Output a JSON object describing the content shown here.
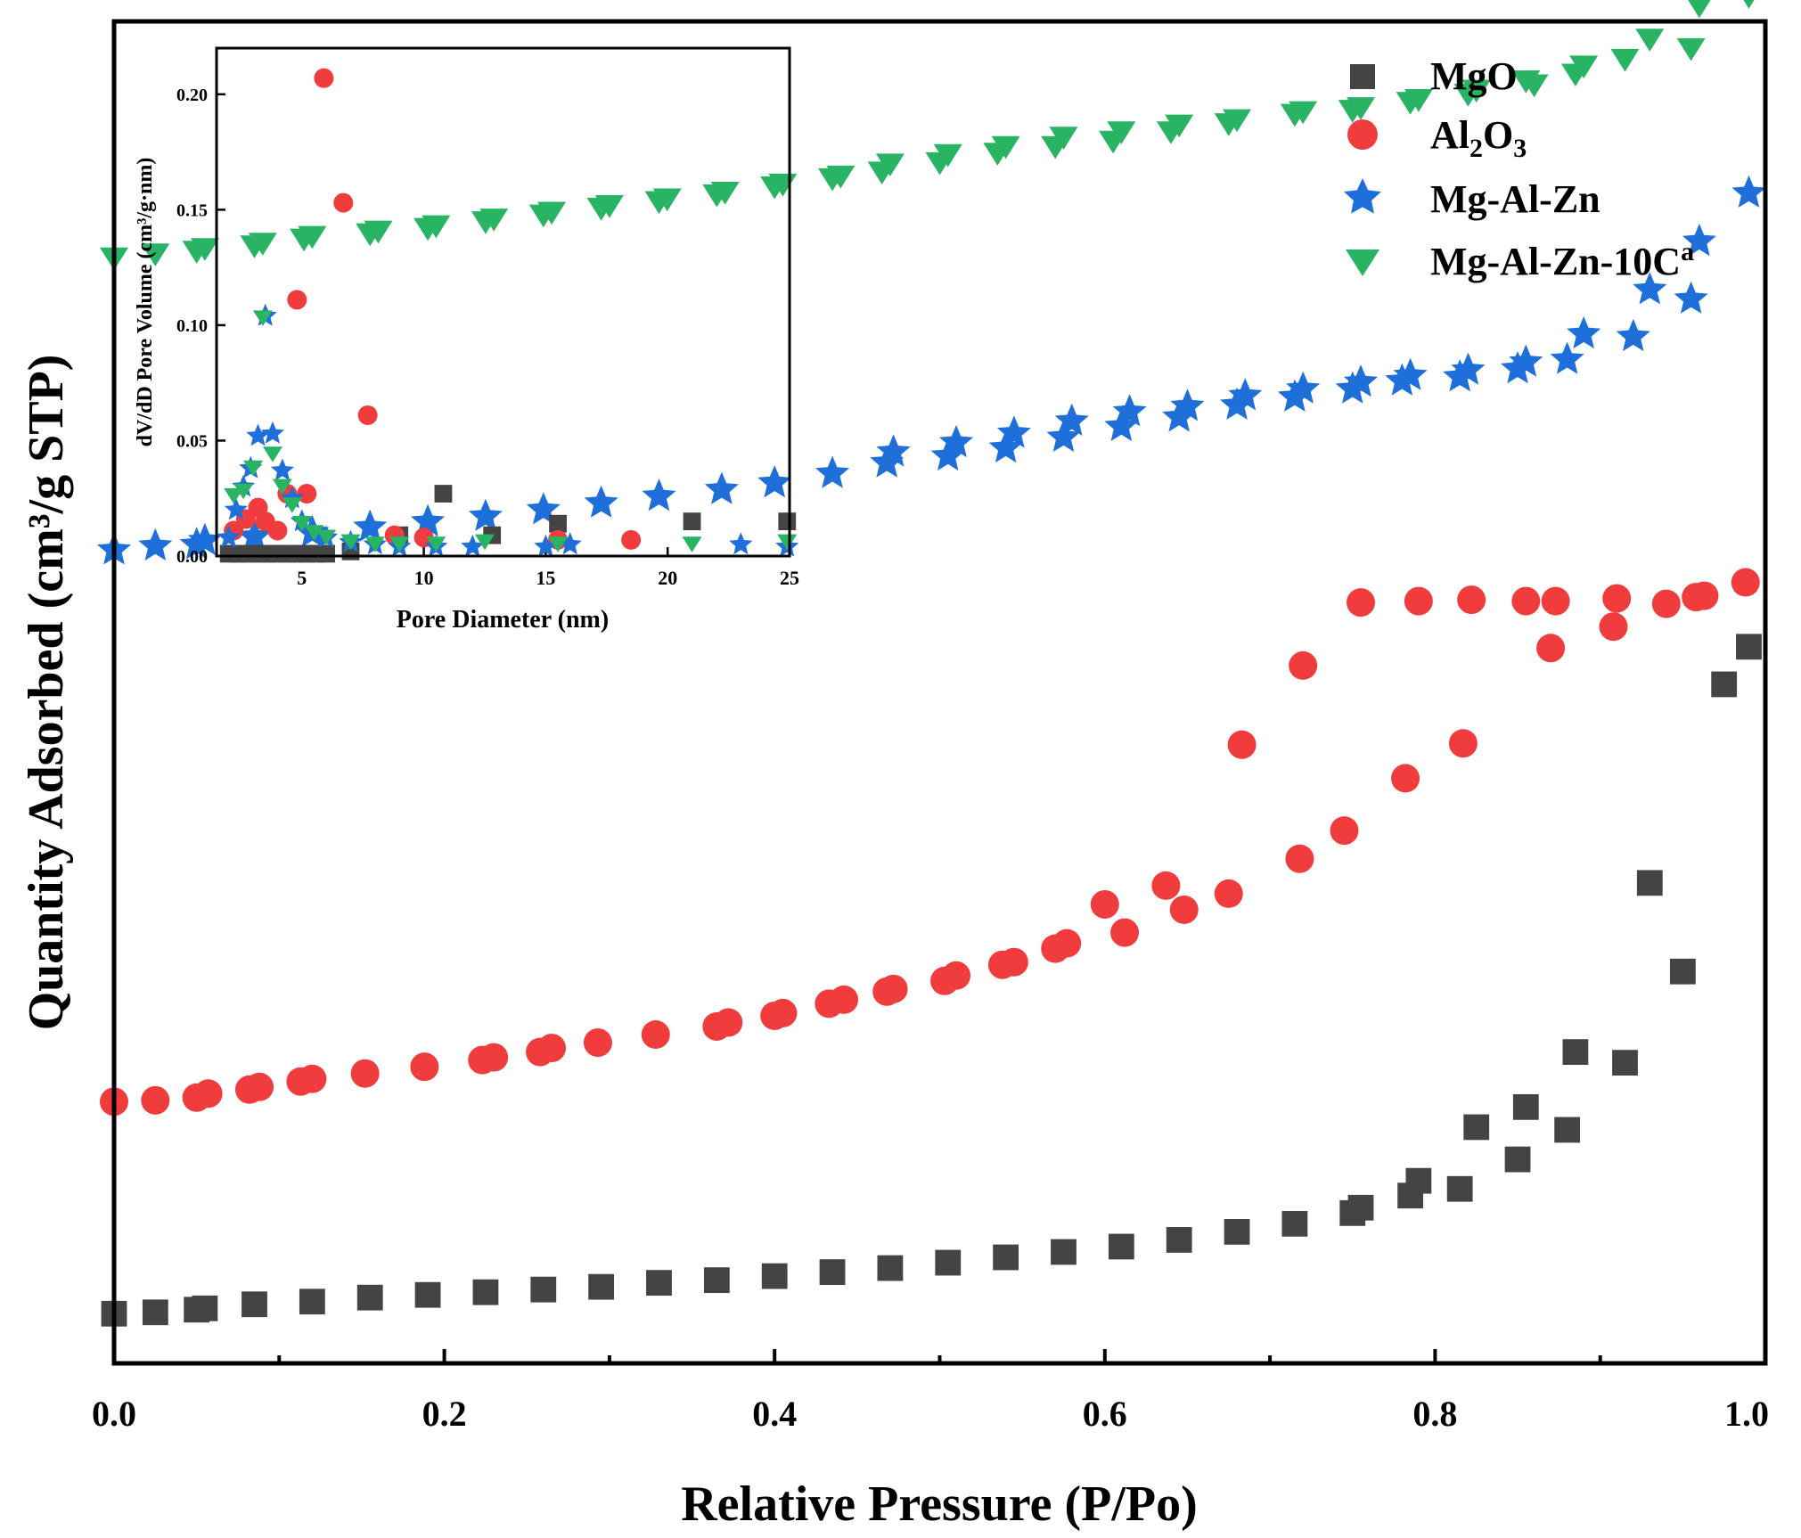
{
  "chart_data": [
    {
      "type": "scatter",
      "xlabel": "Relative Pressure (P/Po)",
      "ylabel": "Quantity Adsorbed (cm³/g STP)",
      "xlim": [
        0,
        1.0
      ],
      "ylim": [
        0,
        100
      ],
      "x_ticks": [
        "0.0",
        "0.2",
        "0.4",
        "0.6",
        "0.8",
        "1.0"
      ],
      "y_ticks_labeled": false,
      "legend": {
        "placement": "top-right",
        "entries": [
          {
            "label": "MgO",
            "marker": "square",
            "color": "#444444"
          },
          {
            "label": "Al",
            "sub": "2",
            "label2": "O",
            "sub2": "3",
            "marker": "circle",
            "color": "#f03c3c"
          },
          {
            "label": "Mg-Al-Zn",
            "marker": "star",
            "color": "#1e6fd9"
          },
          {
            "label": "Mg-Al-Zn-10C",
            "sup": "a",
            "marker": "triangle-down",
            "color": "#28b463"
          }
        ]
      },
      "series": [
        {
          "name": "MgO",
          "marker": "square",
          "color": "#444444",
          "x": [
            0.0,
            0.025,
            0.05,
            0.055,
            0.085,
            0.12,
            0.155,
            0.19,
            0.225,
            0.26,
            0.295,
            0.33,
            0.365,
            0.4,
            0.435,
            0.47,
            0.505,
            0.54,
            0.575,
            0.61,
            0.645,
            0.68,
            0.715,
            0.75,
            0.755,
            0.785,
            0.79,
            0.815,
            0.825,
            0.85,
            0.855,
            0.88,
            0.885,
            0.915,
            0.93,
            0.95,
            0.975,
            0.99
          ],
          "y": [
            3.7,
            3.8,
            4.0,
            4.1,
            4.4,
            4.6,
            4.9,
            5.1,
            5.3,
            5.5,
            5.7,
            6.0,
            6.2,
            6.5,
            6.8,
            7.1,
            7.5,
            7.9,
            8.3,
            8.7,
            9.2,
            9.8,
            10.4,
            11.2,
            11.6,
            12.5,
            13.6,
            13.0,
            17.6,
            15.2,
            19.1,
            17.4,
            23.2,
            22.4,
            35.8,
            29.2,
            50.6,
            53.4
          ]
        },
        {
          "name": "Al2O3",
          "marker": "circle",
          "color": "#f03c3c",
          "x": [
            0.0,
            0.025,
            0.05,
            0.057,
            0.082,
            0.088,
            0.113,
            0.12,
            0.152,
            0.188,
            0.223,
            0.23,
            0.258,
            0.265,
            0.293,
            0.328,
            0.365,
            0.372,
            0.4,
            0.405,
            0.433,
            0.442,
            0.468,
            0.472,
            0.503,
            0.51,
            0.538,
            0.545,
            0.57,
            0.577,
            0.6,
            0.612,
            0.637,
            0.648,
            0.675,
            0.683,
            0.718,
            0.72,
            0.745,
            0.755,
            0.782,
            0.79,
            0.817,
            0.822,
            0.855,
            0.87,
            0.873,
            0.908,
            0.91,
            0.94,
            0.958,
            0.963,
            0.988
          ],
          "y": [
            19.5,
            19.6,
            19.8,
            20.1,
            20.4,
            20.6,
            21.0,
            21.2,
            21.6,
            22.1,
            22.6,
            22.8,
            23.2,
            23.5,
            23.9,
            24.5,
            25.1,
            25.4,
            25.9,
            26.1,
            26.8,
            27.1,
            27.7,
            27.9,
            28.5,
            28.9,
            29.7,
            29.9,
            30.9,
            31.3,
            34.2,
            32.1,
            35.6,
            33.8,
            35.0,
            46.1,
            37.6,
            52.0,
            39.7,
            56.7,
            43.6,
            56.8,
            46.2,
            56.9,
            56.8,
            53.3,
            56.8,
            54.9,
            57.0,
            56.6,
            57.1,
            57.2,
            58.2
          ]
        },
        {
          "name": "Mg-Al-Zn",
          "marker": "star",
          "color": "#1e6fd9",
          "x": [
            0.0,
            0.025,
            0.05,
            0.055,
            0.085,
            0.12,
            0.155,
            0.19,
            0.225,
            0.26,
            0.295,
            0.33,
            0.368,
            0.4,
            0.435,
            0.468,
            0.472,
            0.505,
            0.51,
            0.54,
            0.545,
            0.575,
            0.58,
            0.61,
            0.615,
            0.645,
            0.65,
            0.68,
            0.685,
            0.715,
            0.72,
            0.75,
            0.755,
            0.78,
            0.785,
            0.815,
            0.82,
            0.85,
            0.855,
            0.88,
            0.89,
            0.92,
            0.93,
            0.955,
            0.96,
            0.99
          ],
          "y": [
            60.6,
            60.9,
            61.0,
            61.3,
            61.6,
            61.9,
            62.3,
            62.7,
            63.1,
            63.6,
            64.1,
            64.6,
            65.1,
            65.6,
            66.3,
            67.1,
            67.9,
            67.6,
            68.6,
            68.2,
            69.3,
            69.0,
            70.2,
            69.8,
            70.9,
            70.5,
            71.3,
            71.4,
            72.1,
            72.0,
            72.6,
            72.6,
            73.1,
            73.2,
            73.6,
            73.5,
            74.0,
            74.1,
            74.6,
            74.8,
            76.7,
            76.5,
            80.0,
            79.3,
            83.6,
            87.2
          ]
        },
        {
          "name": "Mg-Al-Zn-10C",
          "marker": "triangle-down",
          "color": "#28b463",
          "x": [
            0.0,
            0.025,
            0.05,
            0.055,
            0.085,
            0.09,
            0.115,
            0.12,
            0.155,
            0.16,
            0.19,
            0.195,
            0.225,
            0.23,
            0.26,
            0.265,
            0.295,
            0.3,
            0.33,
            0.335,
            0.365,
            0.37,
            0.4,
            0.405,
            0.435,
            0.44,
            0.465,
            0.47,
            0.5,
            0.505,
            0.535,
            0.54,
            0.57,
            0.575,
            0.605,
            0.61,
            0.64,
            0.645,
            0.675,
            0.68,
            0.715,
            0.72,
            0.75,
            0.755,
            0.785,
            0.79,
            0.82,
            0.825,
            0.855,
            0.86,
            0.885,
            0.89,
            0.915,
            0.93,
            0.955,
            0.96,
            0.99
          ],
          "y": [
            82.3,
            82.6,
            82.8,
            83.0,
            83.2,
            83.4,
            83.7,
            83.9,
            84.1,
            84.3,
            84.5,
            84.7,
            85.0,
            85.2,
            85.5,
            85.7,
            86.0,
            86.2,
            86.5,
            86.7,
            87.0,
            87.2,
            87.6,
            87.8,
            88.2,
            88.4,
            88.7,
            89.3,
            89.4,
            90.0,
            90.1,
            90.6,
            90.6,
            91.3,
            91.0,
            91.7,
            91.7,
            92.2,
            92.3,
            92.6,
            93.0,
            93.2,
            93.3,
            93.5,
            93.9,
            94.1,
            94.5,
            94.8,
            95.5,
            95.2,
            96.0,
            96.6,
            97.1,
            98.6,
            97.9,
            101.1,
            101.8
          ]
        }
      ]
    },
    {
      "type": "scatter",
      "placement": "inset",
      "xlabel": "Pore Diameter (nm)",
      "ylabel": "dV/dD Pore Volume (cm³/g·nm)",
      "xlim": [
        1.5,
        25
      ],
      "ylim": [
        0,
        0.22
      ],
      "x_ticks": [
        5,
        10,
        15,
        20,
        25
      ],
      "y_ticks": [
        0.0,
        0.05,
        0.1,
        0.15,
        0.2
      ],
      "x_tick_labels": [
        "5",
        "10",
        "15",
        "20",
        "25"
      ],
      "y_tick_labels": [
        "0.00",
        "0.05",
        "0.10",
        "0.15",
        "0.20"
      ],
      "series": [
        {
          "name": "MgO",
          "marker": "square",
          "color": "#444444",
          "x": [
            2.0,
            2.4,
            2.8,
            3.2,
            3.6,
            4.0,
            4.4,
            4.8,
            5.2,
            5.6,
            6.0,
            7.0,
            9.0,
            10.8,
            12.8,
            15.5,
            21.0,
            24.9
          ],
          "y": [
            0.001,
            0.001,
            0.001,
            0.001,
            0.001,
            0.001,
            0.001,
            0.001,
            0.001,
            0.001,
            0.001,
            0.002,
            0.009,
            0.027,
            0.009,
            0.014,
            0.015,
            0.015
          ]
        },
        {
          "name": "Al2O3",
          "marker": "circle",
          "color": "#f03c3c",
          "x": [
            2.2,
            2.7,
            3.2,
            3.5,
            4.0,
            4.4,
            4.8,
            5.2,
            5.9,
            6.7,
            7.7,
            8.8,
            10.0,
            15.5,
            18.5
          ],
          "y": [
            0.011,
            0.016,
            0.021,
            0.015,
            0.011,
            0.027,
            0.111,
            0.027,
            0.207,
            0.153,
            0.061,
            0.009,
            0.008,
            0.007,
            0.007
          ]
        },
        {
          "name": "Mg-Al-Zn",
          "marker": "star",
          "color": "#1e6fd9",
          "x": [
            2.0,
            2.3,
            2.6,
            2.9,
            3.2,
            3.5,
            3.8,
            4.2,
            4.6,
            5.0,
            5.5,
            6.0,
            7.0,
            8.0,
            9.0,
            10.5,
            12.0,
            15.0,
            16.0,
            23.0,
            24.9
          ],
          "y": [
            0.008,
            0.02,
            0.03,
            0.038,
            0.052,
            0.104,
            0.053,
            0.037,
            0.025,
            0.015,
            0.01,
            0.008,
            0.006,
            0.005,
            0.004,
            0.004,
            0.004,
            0.004,
            0.005,
            0.005,
            0.004
          ]
        },
        {
          "name": "Mg-Al-Zn-10C",
          "marker": "triangle-down",
          "color": "#28b463",
          "x": [
            2.2,
            2.6,
            3.0,
            3.4,
            3.8,
            4.2,
            4.6,
            5.0,
            5.5,
            6.0,
            7.0,
            8.0,
            9.0,
            10.5,
            12.5,
            15.5,
            21.0,
            24.9
          ],
          "y": [
            0.026,
            0.028,
            0.038,
            0.103,
            0.044,
            0.03,
            0.022,
            0.014,
            0.01,
            0.008,
            0.006,
            0.005,
            0.005,
            0.005,
            0.006,
            0.005,
            0.005,
            0.006
          ]
        }
      ]
    }
  ]
}
